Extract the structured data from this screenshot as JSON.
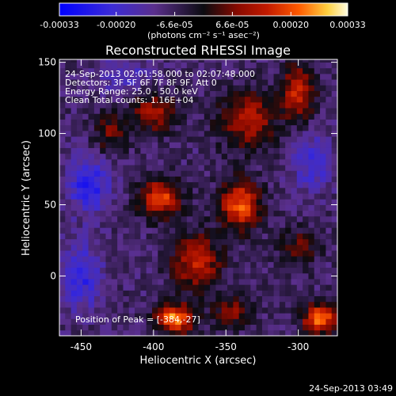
{
  "colors": {
    "background": "#000000",
    "text": "#ffffff",
    "colormap": [
      "#0000ff",
      "#3b2bd6",
      "#5a2f8c",
      "#0b0b10",
      "#8a0a00",
      "#c21a00",
      "#ff5a00",
      "#ffd040",
      "#fffde0"
    ]
  },
  "chart_data": {
    "type": "heatmap",
    "title": "Reconstructed RHESSI Image",
    "xlabel": "Heliocentric X (arcsec)",
    "ylabel": "Heliocentric Y (arcsec)",
    "xlim": [
      -465,
      -273
    ],
    "ylim": [
      -42,
      152
    ],
    "x_ticks": [
      -450,
      -400,
      -350,
      -300
    ],
    "y_ticks": [
      0,
      50,
      100,
      150
    ],
    "x_tick_labels": [
      "-450",
      "-400",
      "-350",
      "-300"
    ],
    "y_tick_labels": [
      "0",
      "50",
      "100",
      "150"
    ],
    "colorbar": {
      "ticks": [
        -0.00033,
        -0.0002,
        -6.6e-05,
        6.6e-05,
        0.0002,
        0.00033
      ],
      "tick_labels": [
        "-0.00033",
        "-0.00020",
        "-6.6e-05",
        "6.6e-05",
        "0.00020",
        "0.00033"
      ],
      "unit_label": "(photons cm⁻² s⁻¹ asec⁻²)",
      "range": [
        -0.00033,
        0.00033
      ]
    },
    "annotations": [
      "24-Sep-2013 02:01:58.000 to 02:07:48.000",
      "Detectors: 3F 5F 6F 7F 8F 9F, Att 0",
      "Energy Range: 25.0 - 50.0 keV",
      "Clean    Total counts: 1.16E+04"
    ],
    "peak_label": "Position of Peak = [-384,-27]",
    "sources": [
      {
        "x": -385,
        "y": -30,
        "v": 0.00033,
        "sx": 9,
        "sy": 7
      },
      {
        "x": -285,
        "y": -30,
        "v": 0.00033,
        "sx": 8,
        "sy": 7
      },
      {
        "x": -395,
        "y": 55,
        "v": 0.00026,
        "sx": 10,
        "sy": 10
      },
      {
        "x": -340,
        "y": 50,
        "v": 0.00028,
        "sx": 10,
        "sy": 12
      },
      {
        "x": -370,
        "y": 10,
        "v": 0.00022,
        "sx": 12,
        "sy": 14
      },
      {
        "x": -335,
        "y": 110,
        "v": 0.0002,
        "sx": 14,
        "sy": 14
      },
      {
        "x": -300,
        "y": 130,
        "v": 0.00022,
        "sx": 8,
        "sy": 14
      },
      {
        "x": -430,
        "y": 100,
        "v": 0.00014,
        "sx": 8,
        "sy": 10
      },
      {
        "x": -400,
        "y": 115,
        "v": 0.00018,
        "sx": 12,
        "sy": 10
      },
      {
        "x": -345,
        "y": -25,
        "v": 0.00014,
        "sx": 10,
        "sy": 8
      },
      {
        "x": -300,
        "y": 20,
        "v": 0.00012,
        "sx": 10,
        "sy": 10
      },
      {
        "x": -445,
        "y": 65,
        "v": -0.00018,
        "sx": 10,
        "sy": 14
      },
      {
        "x": -450,
        "y": 0,
        "v": -0.00015,
        "sx": 10,
        "sy": 16
      },
      {
        "x": -290,
        "y": 80,
        "v": -0.00012,
        "sx": 10,
        "sy": 14
      },
      {
        "x": -420,
        "y": 140,
        "v": -0.0001,
        "sx": 12,
        "sy": 10
      }
    ]
  },
  "footer": {
    "timestamp": "24-Sep-2013 03:49"
  }
}
